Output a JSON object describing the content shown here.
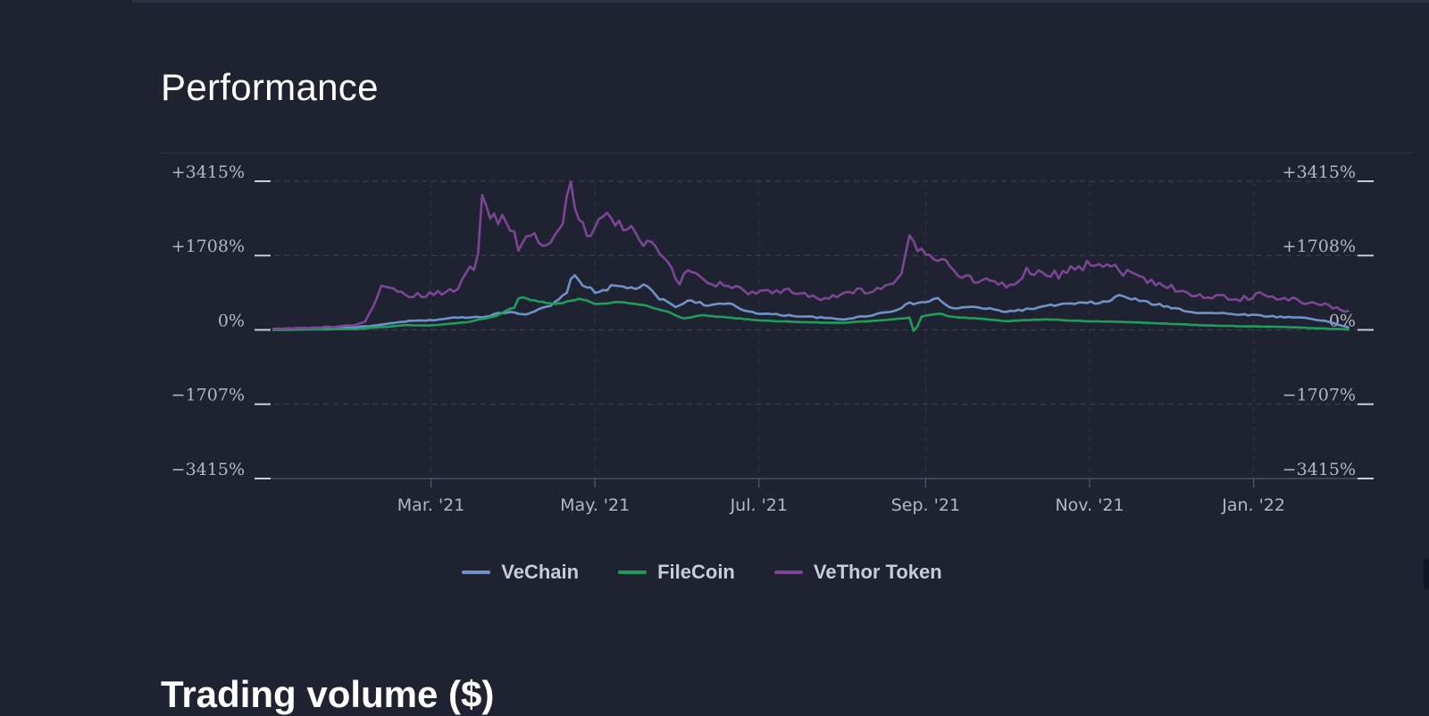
{
  "page": {
    "title": "Performance",
    "next_section_title": "Trading volume ($)"
  },
  "colors": {
    "background": "#1e2231",
    "grid": "#3a3f50",
    "tick_text": "#b4b8c4",
    "vechain": "#6f93c6",
    "filecoin": "#1f9e5a",
    "vethor": "#7d4595"
  },
  "chart_data": {
    "type": "line",
    "title": "",
    "xlabel": "",
    "ylabel": "",
    "ylim": [
      -3415,
      3415
    ],
    "yticks": [
      {
        "value": 3415,
        "label": "+3415%"
      },
      {
        "value": 1708,
        "label": "+1708%"
      },
      {
        "value": 0,
        "label": "0%"
      },
      {
        "value": -1707,
        "label": "−1707%"
      },
      {
        "value": -3415,
        "label": "−3415%"
      }
    ],
    "xrange": [
      "2021-01-01",
      "2022-02-08"
    ],
    "xticks": [
      {
        "date": "2021-03-01",
        "label": "Mar. '21"
      },
      {
        "date": "2021-05-01",
        "label": "May. '21"
      },
      {
        "date": "2021-07-01",
        "label": "Jul. '21"
      },
      {
        "date": "2021-09-01",
        "label": "Sep. '21"
      },
      {
        "date": "2021-11-01",
        "label": "Nov. '21"
      },
      {
        "date": "2022-01-01",
        "label": "Jan. '22"
      }
    ],
    "grid": true,
    "legend": "bottom",
    "series": [
      {
        "name": "VeChain",
        "points": [
          [
            "2021-01-01",
            0
          ],
          [
            "2021-01-10",
            20
          ],
          [
            "2021-01-20",
            40
          ],
          [
            "2021-02-01",
            60
          ],
          [
            "2021-02-10",
            110
          ],
          [
            "2021-02-20",
            200
          ],
          [
            "2021-03-01",
            220
          ],
          [
            "2021-03-10",
            280
          ],
          [
            "2021-03-20",
            300
          ],
          [
            "2021-03-30",
            420
          ],
          [
            "2021-04-05",
            360
          ],
          [
            "2021-04-15",
            560
          ],
          [
            "2021-04-20",
            820
          ],
          [
            "2021-04-23",
            1260
          ],
          [
            "2021-04-26",
            1080
          ],
          [
            "2021-05-01",
            860
          ],
          [
            "2021-05-08",
            1000
          ],
          [
            "2021-05-15",
            960
          ],
          [
            "2021-05-20",
            1000
          ],
          [
            "2021-05-25",
            720
          ],
          [
            "2021-06-01",
            520
          ],
          [
            "2021-06-05",
            700
          ],
          [
            "2021-06-12",
            560
          ],
          [
            "2021-06-20",
            600
          ],
          [
            "2021-06-25",
            460
          ],
          [
            "2021-07-01",
            380
          ],
          [
            "2021-07-10",
            340
          ],
          [
            "2021-07-20",
            300
          ],
          [
            "2021-08-01",
            240
          ],
          [
            "2021-08-10",
            320
          ],
          [
            "2021-08-20",
            440
          ],
          [
            "2021-08-26",
            600
          ],
          [
            "2021-09-01",
            640
          ],
          [
            "2021-09-06",
            720
          ],
          [
            "2021-09-10",
            500
          ],
          [
            "2021-09-20",
            520
          ],
          [
            "2021-10-01",
            420
          ],
          [
            "2021-10-10",
            480
          ],
          [
            "2021-10-20",
            580
          ],
          [
            "2021-11-01",
            620
          ],
          [
            "2021-11-08",
            640
          ],
          [
            "2021-11-12",
            800
          ],
          [
            "2021-11-20",
            660
          ],
          [
            "2021-12-01",
            520
          ],
          [
            "2021-12-10",
            400
          ],
          [
            "2021-12-20",
            380
          ],
          [
            "2022-01-01",
            340
          ],
          [
            "2022-01-10",
            300
          ],
          [
            "2022-01-20",
            280
          ],
          [
            "2022-01-28",
            200
          ],
          [
            "2022-02-06",
            40
          ]
        ]
      },
      {
        "name": "FileCoin",
        "points": [
          [
            "2021-01-01",
            0
          ],
          [
            "2021-02-01",
            20
          ],
          [
            "2021-02-10",
            60
          ],
          [
            "2021-02-20",
            110
          ],
          [
            "2021-03-01",
            100
          ],
          [
            "2021-03-15",
            180
          ],
          [
            "2021-03-25",
            320
          ],
          [
            "2021-04-01",
            520
          ],
          [
            "2021-04-03",
            780
          ],
          [
            "2021-04-08",
            680
          ],
          [
            "2021-04-15",
            600
          ],
          [
            "2021-04-20",
            640
          ],
          [
            "2021-04-25",
            720
          ],
          [
            "2021-05-01",
            600
          ],
          [
            "2021-05-10",
            640
          ],
          [
            "2021-05-20",
            560
          ],
          [
            "2021-05-28",
            420
          ],
          [
            "2021-06-03",
            260
          ],
          [
            "2021-06-10",
            340
          ],
          [
            "2021-06-20",
            280
          ],
          [
            "2021-07-01",
            220
          ],
          [
            "2021-07-15",
            180
          ],
          [
            "2021-08-01",
            160
          ],
          [
            "2021-08-15",
            220
          ],
          [
            "2021-08-26",
            280
          ],
          [
            "2021-08-28",
            -120
          ],
          [
            "2021-08-30",
            300
          ],
          [
            "2021-09-06",
            380
          ],
          [
            "2021-09-10",
            300
          ],
          [
            "2021-09-20",
            260
          ],
          [
            "2021-10-01",
            200
          ],
          [
            "2021-10-15",
            240
          ],
          [
            "2021-11-01",
            200
          ],
          [
            "2021-11-15",
            180
          ],
          [
            "2021-12-01",
            140
          ],
          [
            "2021-12-15",
            100
          ],
          [
            "2022-01-01",
            80
          ],
          [
            "2022-01-15",
            60
          ],
          [
            "2022-02-01",
            20
          ],
          [
            "2022-02-06",
            10
          ]
        ]
      },
      {
        "name": "VeThor Token",
        "points": [
          [
            "2021-01-01",
            20
          ],
          [
            "2021-01-10",
            40
          ],
          [
            "2021-01-20",
            60
          ],
          [
            "2021-02-01",
            100
          ],
          [
            "2021-02-05",
            200
          ],
          [
            "2021-02-10",
            960
          ],
          [
            "2021-02-15",
            880
          ],
          [
            "2021-02-20",
            760
          ],
          [
            "2021-03-01",
            820
          ],
          [
            "2021-03-10",
            880
          ],
          [
            "2021-03-15",
            1500
          ],
          [
            "2021-03-18",
            1500
          ],
          [
            "2021-03-20",
            2920
          ],
          [
            "2021-03-24",
            2560
          ],
          [
            "2021-03-28",
            2600
          ],
          [
            "2021-04-02",
            1960
          ],
          [
            "2021-04-08",
            2100
          ],
          [
            "2021-04-13",
            2080
          ],
          [
            "2021-04-18",
            2300
          ],
          [
            "2021-04-21",
            3360
          ],
          [
            "2021-04-25",
            2760
          ],
          [
            "2021-04-29",
            2000
          ],
          [
            "2021-05-03",
            2600
          ],
          [
            "2021-05-10",
            2460
          ],
          [
            "2021-05-15",
            2240
          ],
          [
            "2021-05-20",
            1960
          ],
          [
            "2021-05-26",
            1700
          ],
          [
            "2021-06-01",
            1080
          ],
          [
            "2021-06-05",
            1400
          ],
          [
            "2021-06-12",
            1100
          ],
          [
            "2021-06-20",
            1020
          ],
          [
            "2021-06-28",
            860
          ],
          [
            "2021-07-05",
            900
          ],
          [
            "2021-07-15",
            880
          ],
          [
            "2021-07-25",
            720
          ],
          [
            "2021-08-05",
            880
          ],
          [
            "2021-08-15",
            920
          ],
          [
            "2021-08-22",
            1100
          ],
          [
            "2021-08-26",
            2060
          ],
          [
            "2021-09-01",
            1620
          ],
          [
            "2021-09-06",
            1700
          ],
          [
            "2021-09-10",
            1400
          ],
          [
            "2021-09-20",
            1160
          ],
          [
            "2021-10-01",
            1000
          ],
          [
            "2021-10-10",
            1400
          ],
          [
            "2021-10-20",
            1260
          ],
          [
            "2021-11-01",
            1560
          ],
          [
            "2021-11-05",
            1540
          ],
          [
            "2021-11-10",
            1440
          ],
          [
            "2021-11-20",
            1200
          ],
          [
            "2021-12-01",
            1000
          ],
          [
            "2021-12-10",
            780
          ],
          [
            "2021-12-20",
            760
          ],
          [
            "2021-12-25",
            700
          ],
          [
            "2022-01-01",
            760
          ],
          [
            "2022-01-05",
            860
          ],
          [
            "2022-01-10",
            740
          ],
          [
            "2022-01-20",
            640
          ],
          [
            "2022-01-28",
            560
          ],
          [
            "2022-02-06",
            420
          ]
        ]
      }
    ]
  }
}
